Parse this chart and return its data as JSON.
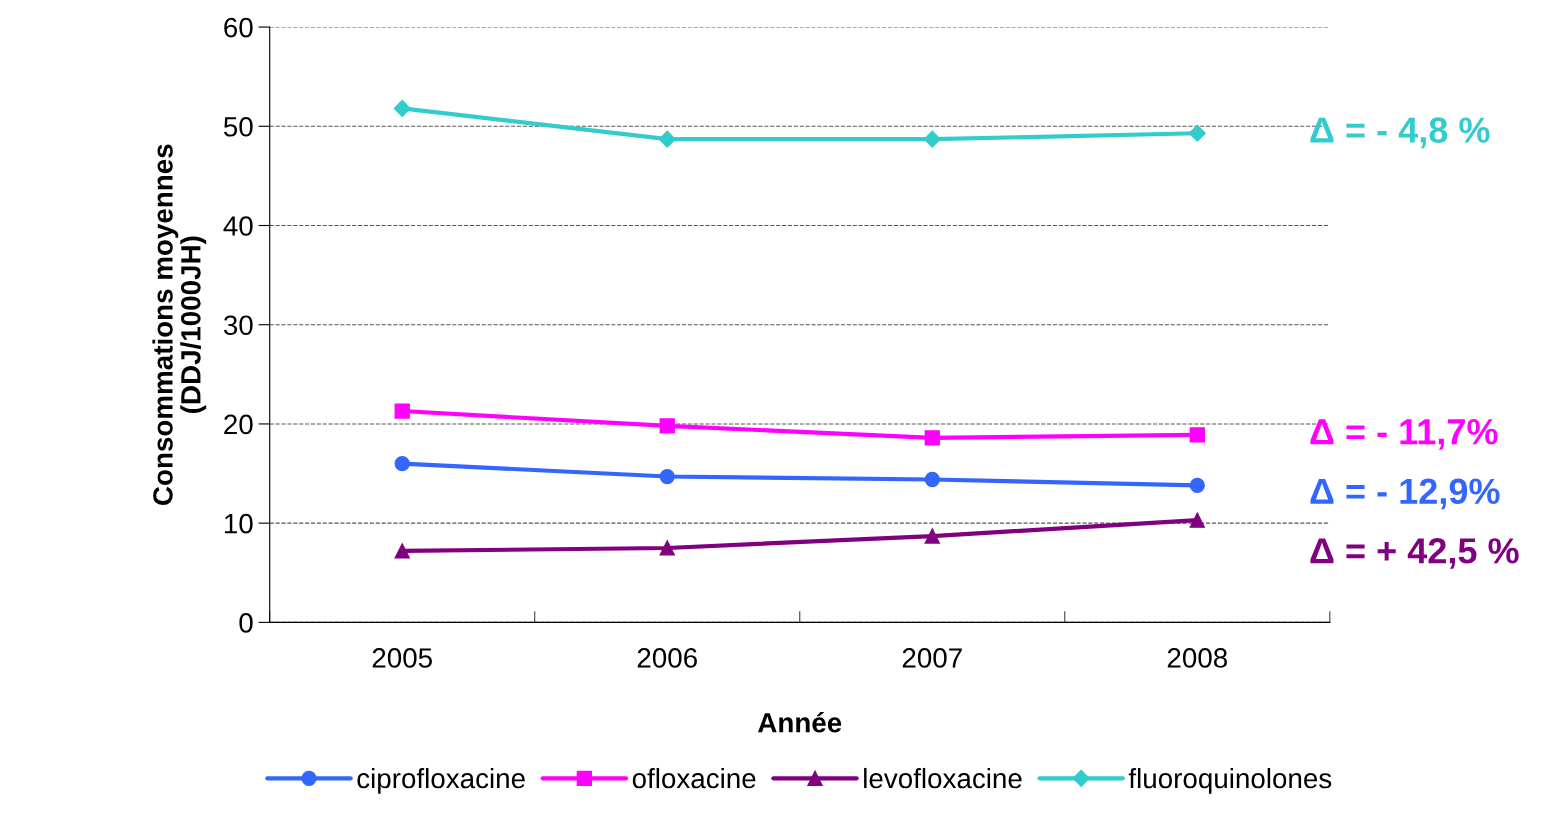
{
  "chart_data": {
    "type": "line",
    "xlabel": "Année",
    "ylabel": "Consommations moyennes\n(DDJ/1000JH)",
    "categories": [
      "2005",
      "2006",
      "2007",
      "2008"
    ],
    "series": [
      {
        "name": "ciprofloxacine",
        "color": "#3366ff",
        "marker": "circle",
        "values": [
          16.0,
          14.7,
          14.4,
          13.8
        ]
      },
      {
        "name": "ofloxacine",
        "color": "#ff00ff",
        "marker": "square",
        "values": [
          21.3,
          19.8,
          18.6,
          18.9
        ]
      },
      {
        "name": "levofloxacine",
        "color": "#800080",
        "marker": "triangle",
        "values": [
          7.2,
          7.5,
          8.7,
          10.3
        ]
      },
      {
        "name": "fluoroquinolones",
        "color": "#33cccc",
        "marker": "diamond",
        "values": [
          51.8,
          48.7,
          48.7,
          49.3
        ]
      }
    ],
    "annotations": [
      "Δ = - 4,8 %",
      "Δ = - 11,7%",
      "Δ = - 12,9%",
      "Δ = + 42,5 %"
    ],
    "ylim": [
      0,
      60
    ],
    "yticks": [
      0,
      10,
      20,
      30,
      40,
      50,
      60
    ],
    "grid": "y",
    "legend": "bottom",
    "line_style": "solid"
  }
}
